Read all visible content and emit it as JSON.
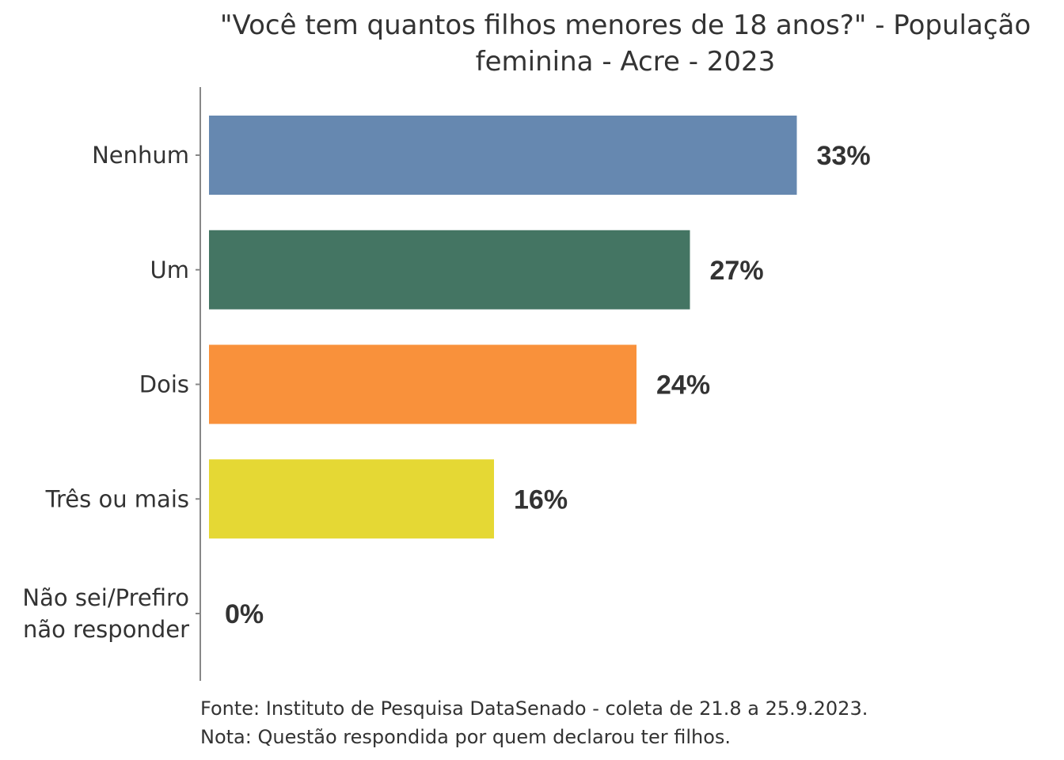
{
  "chart_data": {
    "type": "bar",
    "orientation": "horizontal",
    "title": "\"Você tem quantos filhos menores de 18 anos?\" - População feminina - Acre - 2023",
    "title_lines": [
      "\"Você tem quantos filhos menores de 18 anos?\" - População",
      "feminina - Acre - 2023"
    ],
    "categories": [
      [
        "Nenhum"
      ],
      [
        "Um"
      ],
      [
        "Dois"
      ],
      [
        "Três ou mais"
      ],
      [
        "Não sei/Prefiro",
        "não responder"
      ]
    ],
    "values": [
      33,
      27,
      24,
      16,
      0
    ],
    "value_labels": [
      "33%",
      "27%",
      "24%",
      "16%",
      "0%"
    ],
    "unit": "%",
    "colors": [
      "#6688B0",
      "#447563",
      "#F9913B",
      "#E5D834",
      "#B0B0B0"
    ],
    "grid": false,
    "legend": "none",
    "source_lines": [
      "Fonte: Instituto de Pesquisa DataSenado - coleta de 21.8 a 25.9.2023.",
      "Nota: Questão respondida por quem declarou ter filhos."
    ]
  }
}
